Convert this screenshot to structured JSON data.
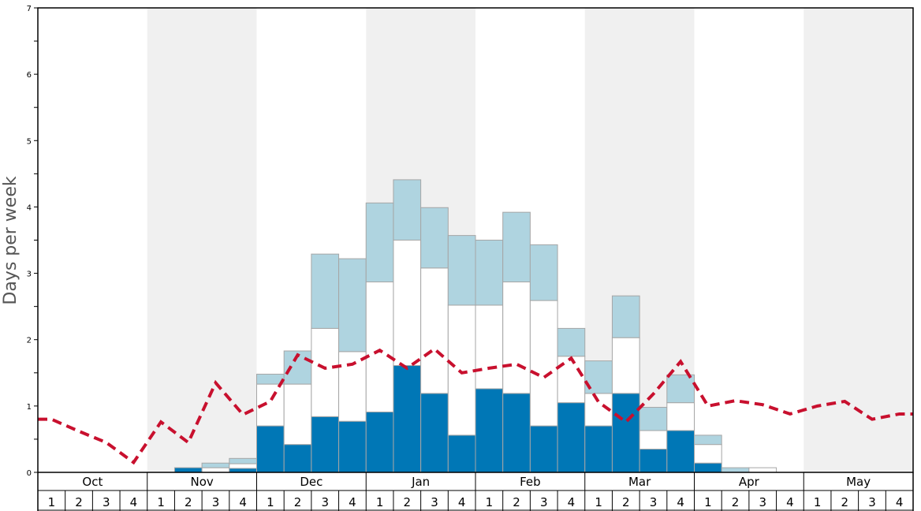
{
  "chart_data": {
    "type": "bar",
    "ylabel": "Days per week",
    "ylim": [
      0,
      7
    ],
    "y_ticks": [
      "0",
      "1",
      "2",
      "3",
      "4",
      "5",
      "6",
      "7"
    ],
    "months": [
      "Oct",
      "Nov",
      "Dec",
      "Jan",
      "Feb",
      "Mar",
      "Apr",
      "May"
    ],
    "week_labels": [
      "1",
      "2",
      "3",
      "4",
      "1",
      "2",
      "3",
      "4",
      "1",
      "2",
      "3",
      "4",
      "1",
      "2",
      "3",
      "4",
      "1",
      "2",
      "3",
      "4",
      "1",
      "2",
      "3",
      "4",
      "1",
      "2",
      "3",
      "4",
      "1",
      "2",
      "3",
      "4"
    ],
    "stacked": true,
    "series": [
      {
        "color": "#0077b6",
        "values": [
          0,
          0,
          0,
          0,
          0,
          0.07,
          0,
          0.06,
          0.7,
          0.42,
          0.84,
          0.77,
          0.91,
          1.61,
          1.19,
          0.56,
          1.26,
          1.19,
          0.7,
          1.05,
          0.7,
          1.19,
          0.35,
          0.63,
          0.14,
          0,
          0,
          0,
          0,
          0,
          0,
          0
        ]
      },
      {
        "color": "#ffffff",
        "values": [
          0,
          0,
          0,
          0,
          0,
          0,
          0.07,
          0.07,
          0.63,
          0.91,
          1.33,
          1.05,
          1.96,
          1.89,
          1.89,
          1.96,
          1.26,
          1.68,
          1.89,
          0.7,
          0.49,
          0.84,
          0.28,
          0.42,
          0.28,
          0,
          0.07,
          0,
          0,
          0,
          0,
          0
        ]
      },
      {
        "color": "#afd4e0",
        "values": [
          0,
          0,
          0,
          0,
          0,
          0,
          0.07,
          0.08,
          0.15,
          0.5,
          1.12,
          1.4,
          1.19,
          0.91,
          0.91,
          1.05,
          0.98,
          1.05,
          0.84,
          0.42,
          0.49,
          0.63,
          0.35,
          0.42,
          0.14,
          0.07,
          0,
          0,
          0,
          0,
          0,
          0
        ]
      }
    ],
    "trend_line": {
      "color": "#c8102e",
      "style": "dashed",
      "values": [
        0.8,
        0.62,
        0.45,
        0.15,
        0.76,
        0.45,
        1.35,
        0.87,
        1.07,
        1.77,
        1.57,
        1.63,
        1.84,
        1.57,
        1.86,
        1.5,
        1.57,
        1.63,
        1.43,
        1.72,
        1.06,
        0.76,
        1.18,
        1.67,
        1.0,
        1.08,
        1.02,
        0.88,
        1.0,
        1.07,
        0.8,
        0.88
      ]
    },
    "month_band_colors": [
      "#ffffff",
      "#f0f0f0"
    ],
    "grid": false
  }
}
